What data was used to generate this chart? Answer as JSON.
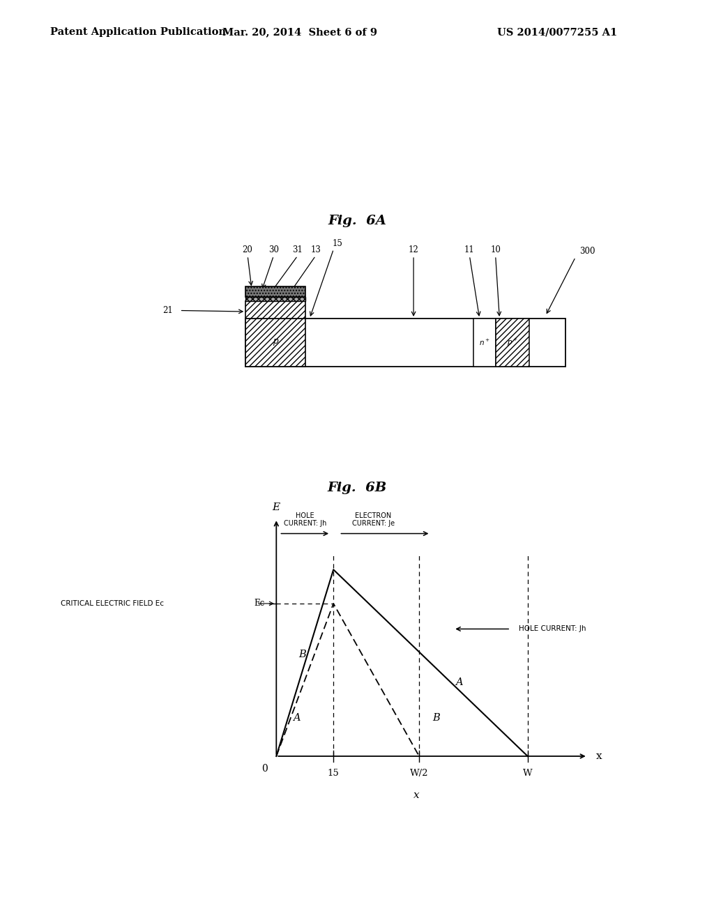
{
  "bg_color": "#ffffff",
  "header_left": "Patent Application Publication",
  "header_mid": "Mar. 20, 2014  Sheet 6 of 9",
  "header_right": "US 2014/0077255 A1",
  "fig6a_title": "Fig.  6A",
  "fig6b_title": "Fig.  6B",
  "fig6b_x_ticks": [
    "0",
    "15",
    "W/2",
    "W"
  ],
  "fig6b_hole_current_top": "HOLE\nCURRENT: Jh",
  "fig6b_electron_current_top": "ELECTRON\nCURRENT: Je",
  "fig6b_hole_current_right": "HOLE CURRENT: Jh",
  "fig6b_ec_label": "CRITICAL ELECTRIC FIELD Ec"
}
